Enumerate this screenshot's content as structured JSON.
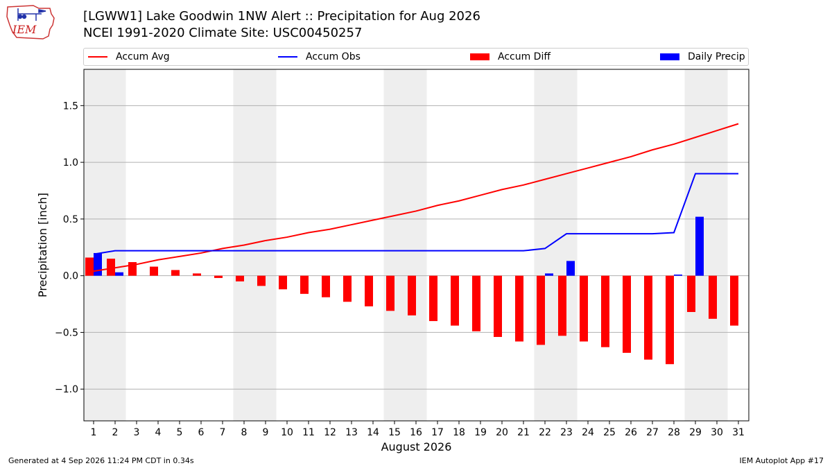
{
  "header": {
    "title_line1": "[LGWW1] Lake Goodwin 1NW Alert :: Precipitation for Aug 2026",
    "title_line2": "NCEI 1991-2020 Climate Site: USC00450257",
    "logo_text": "IEM"
  },
  "legend": {
    "accum_avg": "Accum Avg",
    "accum_obs": "Accum Obs",
    "accum_diff": "Accum Diff",
    "daily_precip": "Daily Precip"
  },
  "footer": {
    "left": "Generated at 4 Sep 2026 11:24 PM CDT in 0.34s",
    "right": "IEM Autoplot App #17"
  },
  "colors": {
    "accum_avg": "#ff0000",
    "accum_obs": "#0000ff",
    "accum_diff": "#ff0000",
    "daily_precip": "#0000ff",
    "weekend_shade": "#eeeeee",
    "grid": "#b0b0b0"
  },
  "chart_data": {
    "type": "bar",
    "xlabel": "August 2026",
    "ylabel": "Precipitation [inch]",
    "x": [
      1,
      2,
      3,
      4,
      5,
      6,
      7,
      8,
      9,
      10,
      11,
      12,
      13,
      14,
      15,
      16,
      17,
      18,
      19,
      20,
      21,
      22,
      23,
      24,
      25,
      26,
      27,
      28,
      29,
      30,
      31
    ],
    "ylim": [
      -1.28,
      1.82
    ],
    "yticks": [
      -1.0,
      -0.5,
      0.0,
      0.5,
      1.0,
      1.5
    ],
    "ytick_labels": [
      "−1.0",
      "−0.5",
      "0.0",
      "0.5",
      "1.0",
      "1.5"
    ],
    "grid": true,
    "shaded_weekend_days": [
      1,
      2,
      8,
      9,
      15,
      16,
      22,
      23,
      29,
      30
    ],
    "series": [
      {
        "name": "Accum Avg",
        "type": "line",
        "values": [
          0.04,
          0.07,
          0.1,
          0.14,
          0.17,
          0.2,
          0.24,
          0.27,
          0.31,
          0.34,
          0.38,
          0.41,
          0.45,
          0.49,
          0.53,
          0.57,
          0.62,
          0.66,
          0.71,
          0.76,
          0.8,
          0.85,
          0.9,
          0.95,
          1.0,
          1.05,
          1.11,
          1.16,
          1.22,
          1.28,
          1.34
        ]
      },
      {
        "name": "Accum Obs",
        "type": "line",
        "values": [
          0.19,
          0.22,
          0.22,
          0.22,
          0.22,
          0.22,
          0.22,
          0.22,
          0.22,
          0.22,
          0.22,
          0.22,
          0.22,
          0.22,
          0.22,
          0.22,
          0.22,
          0.22,
          0.22,
          0.22,
          0.22,
          0.24,
          0.37,
          0.37,
          0.37,
          0.37,
          0.37,
          0.38,
          0.9,
          0.9,
          0.9
        ]
      },
      {
        "name": "Accum Diff",
        "type": "bar",
        "values": [
          0.16,
          0.15,
          0.12,
          0.08,
          0.05,
          0.02,
          -0.02,
          -0.05,
          -0.09,
          -0.12,
          -0.16,
          -0.19,
          -0.23,
          -0.27,
          -0.31,
          -0.35,
          -0.4,
          -0.44,
          -0.49,
          -0.54,
          -0.58,
          -0.61,
          -0.53,
          -0.58,
          -0.63,
          -0.68,
          -0.74,
          -0.78,
          -0.32,
          -0.38,
          -0.44
        ]
      },
      {
        "name": "Daily Precip",
        "type": "bar",
        "values": [
          0.2,
          0.03,
          0,
          0,
          0,
          0,
          0,
          0,
          0,
          0,
          0,
          0,
          0,
          0,
          0,
          0,
          0,
          0,
          0,
          0,
          0,
          0.02,
          0.13,
          0,
          0,
          0,
          0,
          0.01,
          0.52,
          0,
          0
        ]
      }
    ]
  }
}
